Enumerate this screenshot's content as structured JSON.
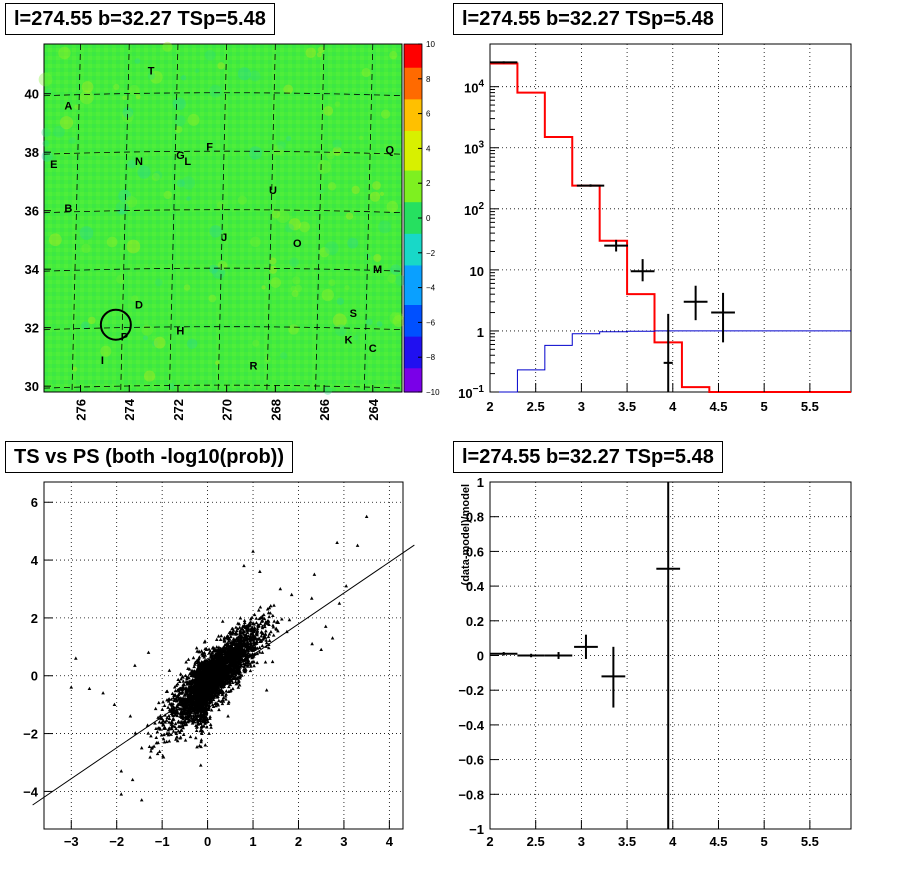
{
  "panels": {
    "sky_title": "l=274.55 b=32.27 TSp=5.48",
    "spectrum_title": "l=274.55 b=32.27 TSp=5.48",
    "scatter_title": "TS vs PS (both -log10(prob))",
    "residual_title": "l=274.55 b=32.27 TSp=5.48"
  },
  "chart_data": [
    {
      "type": "heatmap",
      "title": "l=274.55 b=32.27 TSp=5.48",
      "xlim": [
        277.5,
        262.8
      ],
      "ylim": [
        29.8,
        41.7
      ],
      "x_ticks": [
        "276",
        "274",
        "272",
        "270",
        "268",
        "266",
        "264"
      ],
      "y_ticks": [
        "30",
        "32",
        "34",
        "36",
        "38",
        "40"
      ],
      "colorbar_ticks": [
        "10",
        "8",
        "6",
        "4",
        "2",
        "0",
        "−2",
        "−4",
        "−6",
        "−8",
        "−10"
      ],
      "colorbar_range": [
        -10,
        10
      ],
      "source_labels": [
        {
          "text": "T",
          "l": 273.1,
          "b": 40.8
        },
        {
          "text": "A",
          "l": 276.5,
          "b": 39.6
        },
        {
          "text": "F",
          "l": 270.7,
          "b": 38.2
        },
        {
          "text": "G",
          "l": 271.9,
          "b": 37.9
        },
        {
          "text": "L",
          "l": 271.6,
          "b": 37.7
        },
        {
          "text": "N",
          "l": 273.6,
          "b": 37.7
        },
        {
          "text": "E",
          "l": 277.1,
          "b": 37.6
        },
        {
          "text": "Q",
          "l": 263.3,
          "b": 38.1
        },
        {
          "text": "U",
          "l": 268.1,
          "b": 36.7
        },
        {
          "text": "B",
          "l": 276.5,
          "b": 36.1
        },
        {
          "text": "J",
          "l": 270.1,
          "b": 35.1
        },
        {
          "text": "O",
          "l": 267.1,
          "b": 34.9
        },
        {
          "text": "M",
          "l": 263.8,
          "b": 34.0
        },
        {
          "text": "D",
          "l": 273.6,
          "b": 32.8
        },
        {
          "text": "S",
          "l": 264.8,
          "b": 32.5
        },
        {
          "text": "H",
          "l": 271.9,
          "b": 31.9
        },
        {
          "text": "P",
          "l": 274.2,
          "b": 31.7
        },
        {
          "text": "K",
          "l": 265.0,
          "b": 31.6
        },
        {
          "text": "C",
          "l": 264.0,
          "b": 31.3
        },
        {
          "text": "I",
          "l": 275.1,
          "b": 30.9
        },
        {
          "text": "R",
          "l": 268.9,
          "b": 30.7
        }
      ],
      "marker_circle": {
        "l": 274.55,
        "b": 32.1
      }
    },
    {
      "type": "line",
      "title": "l=274.55 b=32.27 TSp=5.48",
      "log_y": true,
      "xlim": [
        2,
        5.95
      ],
      "ylim": [
        0.1,
        50000
      ],
      "x_ticks": [
        "2",
        "2.5",
        "3",
        "3.5",
        "4",
        "4.5",
        "5",
        "5.5"
      ],
      "y_ticks": [
        {
          "base": "10",
          "exp": "−1"
        },
        {
          "base": "1",
          "exp": ""
        },
        {
          "base": "10",
          "exp": ""
        },
        {
          "base": "10",
          "exp": "2"
        },
        {
          "base": "10",
          "exp": "3"
        },
        {
          "base": "10",
          "exp": "4"
        }
      ],
      "grid": true,
      "series": [
        {
          "color": "#ff0000",
          "kind": "step",
          "edges": [
            2.0,
            2.3,
            2.6,
            2.9,
            3.2,
            3.5,
            3.8,
            4.1,
            4.4,
            5.95
          ],
          "values": [
            24000,
            8000,
            1500,
            240,
            30,
            4,
            0.65,
            0.12,
            0.1
          ]
        },
        {
          "color": "#0000cc",
          "kind": "step",
          "edges": [
            2.0,
            2.3,
            2.6,
            2.9,
            3.2,
            3.5,
            3.8,
            4.1,
            5.95
          ],
          "values": [
            0.1,
            0.23,
            0.58,
            0.9,
            0.97,
            0.99,
            1.0,
            1.0
          ]
        },
        {
          "color": "#000000",
          "kind": "errorbar",
          "points": [
            {
              "x": 2.15,
              "xerr": 0.15,
              "y": 25000,
              "ylo": 24000,
              "yhi": 26000
            },
            {
              "x": 3.1,
              "xerr": 0.15,
              "y": 240,
              "ylo": 230,
              "yhi": 252
            },
            {
              "x": 3.38,
              "xerr": 0.13,
              "y": 25,
              "ylo": 20,
              "yhi": 31
            },
            {
              "x": 3.67,
              "xerr": 0.13,
              "y": 9.5,
              "ylo": 6.5,
              "yhi": 15
            },
            {
              "x": 3.95,
              "xerr": 0.05,
              "y": 0.3,
              "ylo": 0.1,
              "yhi": 1.9
            },
            {
              "x": 4.25,
              "xerr": 0.13,
              "y": 3,
              "ylo": 1.5,
              "yhi": 5.5
            },
            {
              "x": 4.55,
              "xerr": 0.13,
              "y": 2,
              "ylo": 0.65,
              "yhi": 4.2
            }
          ]
        }
      ]
    },
    {
      "type": "scatter",
      "title": "TS vs PS (both -log10(prob))",
      "xlim": [
        -3.6,
        4.3
      ],
      "ylim": [
        -5.3,
        6.7
      ],
      "x_ticks": [
        "−3",
        "−2",
        "−1",
        "0",
        "1",
        "2",
        "3",
        "4"
      ],
      "y_ticks": [
        "−4",
        "−2",
        "0",
        "2",
        "4",
        "6"
      ],
      "grid": true,
      "fit_line": {
        "slope": 1.07,
        "intercept": -0.35
      },
      "outlier_points": [
        [
          3.5,
          5.5
        ],
        [
          3.3,
          4.5
        ],
        [
          2.85,
          4.6
        ],
        [
          2.35,
          3.5
        ],
        [
          3.05,
          3.1
        ],
        [
          2.9,
          2.5
        ],
        [
          2.6,
          1.7
        ],
        [
          2.75,
          1.3
        ],
        [
          2.3,
          1.1
        ],
        [
          2.5,
          0.9
        ],
        [
          1.0,
          4.3
        ],
        [
          0.8,
          3.8
        ],
        [
          1.15,
          3.6
        ],
        [
          1.6,
          3.0
        ],
        [
          1.85,
          2.8
        ],
        [
          -1.9,
          -4.1
        ],
        [
          -1.45,
          -4.3
        ],
        [
          -1.65,
          -3.6
        ],
        [
          -1.9,
          -3.3
        ],
        [
          -1.45,
          -2.5
        ],
        [
          -1.1,
          -2.7
        ],
        [
          -0.95,
          -2.3
        ],
        [
          -2.9,
          0.6
        ],
        [
          -3.0,
          -0.4
        ],
        [
          -2.6,
          -0.45
        ],
        [
          -2.3,
          -0.6
        ],
        [
          -2.05,
          -1.0
        ],
        [
          -1.7,
          -1.4
        ],
        [
          -1.6,
          0.35
        ],
        [
          -1.3,
          0.8
        ],
        [
          -0.15,
          -3.1
        ],
        [
          -0.05,
          -2.4
        ],
        [
          0.45,
          -1.4
        ],
        [
          1.3,
          -0.5
        ]
      ],
      "cluster": {
        "n": 3600,
        "x_center": 0.15,
        "y_center": 0.0
      }
    },
    {
      "type": "line",
      "title": "l=274.55 b=32.27 TSp=5.48",
      "ylabel": "(data-model)/model",
      "xlim": [
        2,
        5.95
      ],
      "ylim": [
        -1,
        1
      ],
      "x_ticks": [
        "2",
        "2.5",
        "3",
        "3.5",
        "4",
        "4.5",
        "5",
        "5.5"
      ],
      "y_ticks": [
        "−1",
        "−0.8",
        "−0.6",
        "−0.4",
        "−0.2",
        "0",
        "0.2",
        "0.4",
        "0.6",
        "0.8",
        "1"
      ],
      "grid": true,
      "points": [
        {
          "x": 2.15,
          "xerr": 0.15,
          "y": 0.01,
          "ylo": 0.0,
          "yhi": 0.02
        },
        {
          "x": 2.45,
          "xerr": 0.15,
          "y": 0.0,
          "ylo": -0.01,
          "yhi": 0.01
        },
        {
          "x": 2.75,
          "xerr": 0.15,
          "y": 0.0,
          "ylo": -0.02,
          "yhi": 0.02
        },
        {
          "x": 3.05,
          "xerr": 0.13,
          "y": 0.05,
          "ylo": -0.02,
          "yhi": 0.12
        },
        {
          "x": 3.35,
          "xerr": 0.13,
          "y": -0.12,
          "ylo": -0.3,
          "yhi": 0.05
        },
        {
          "x": 3.95,
          "xerr": 0.13,
          "y": 0.5,
          "ylo": -1,
          "yhi": 1
        }
      ]
    }
  ]
}
